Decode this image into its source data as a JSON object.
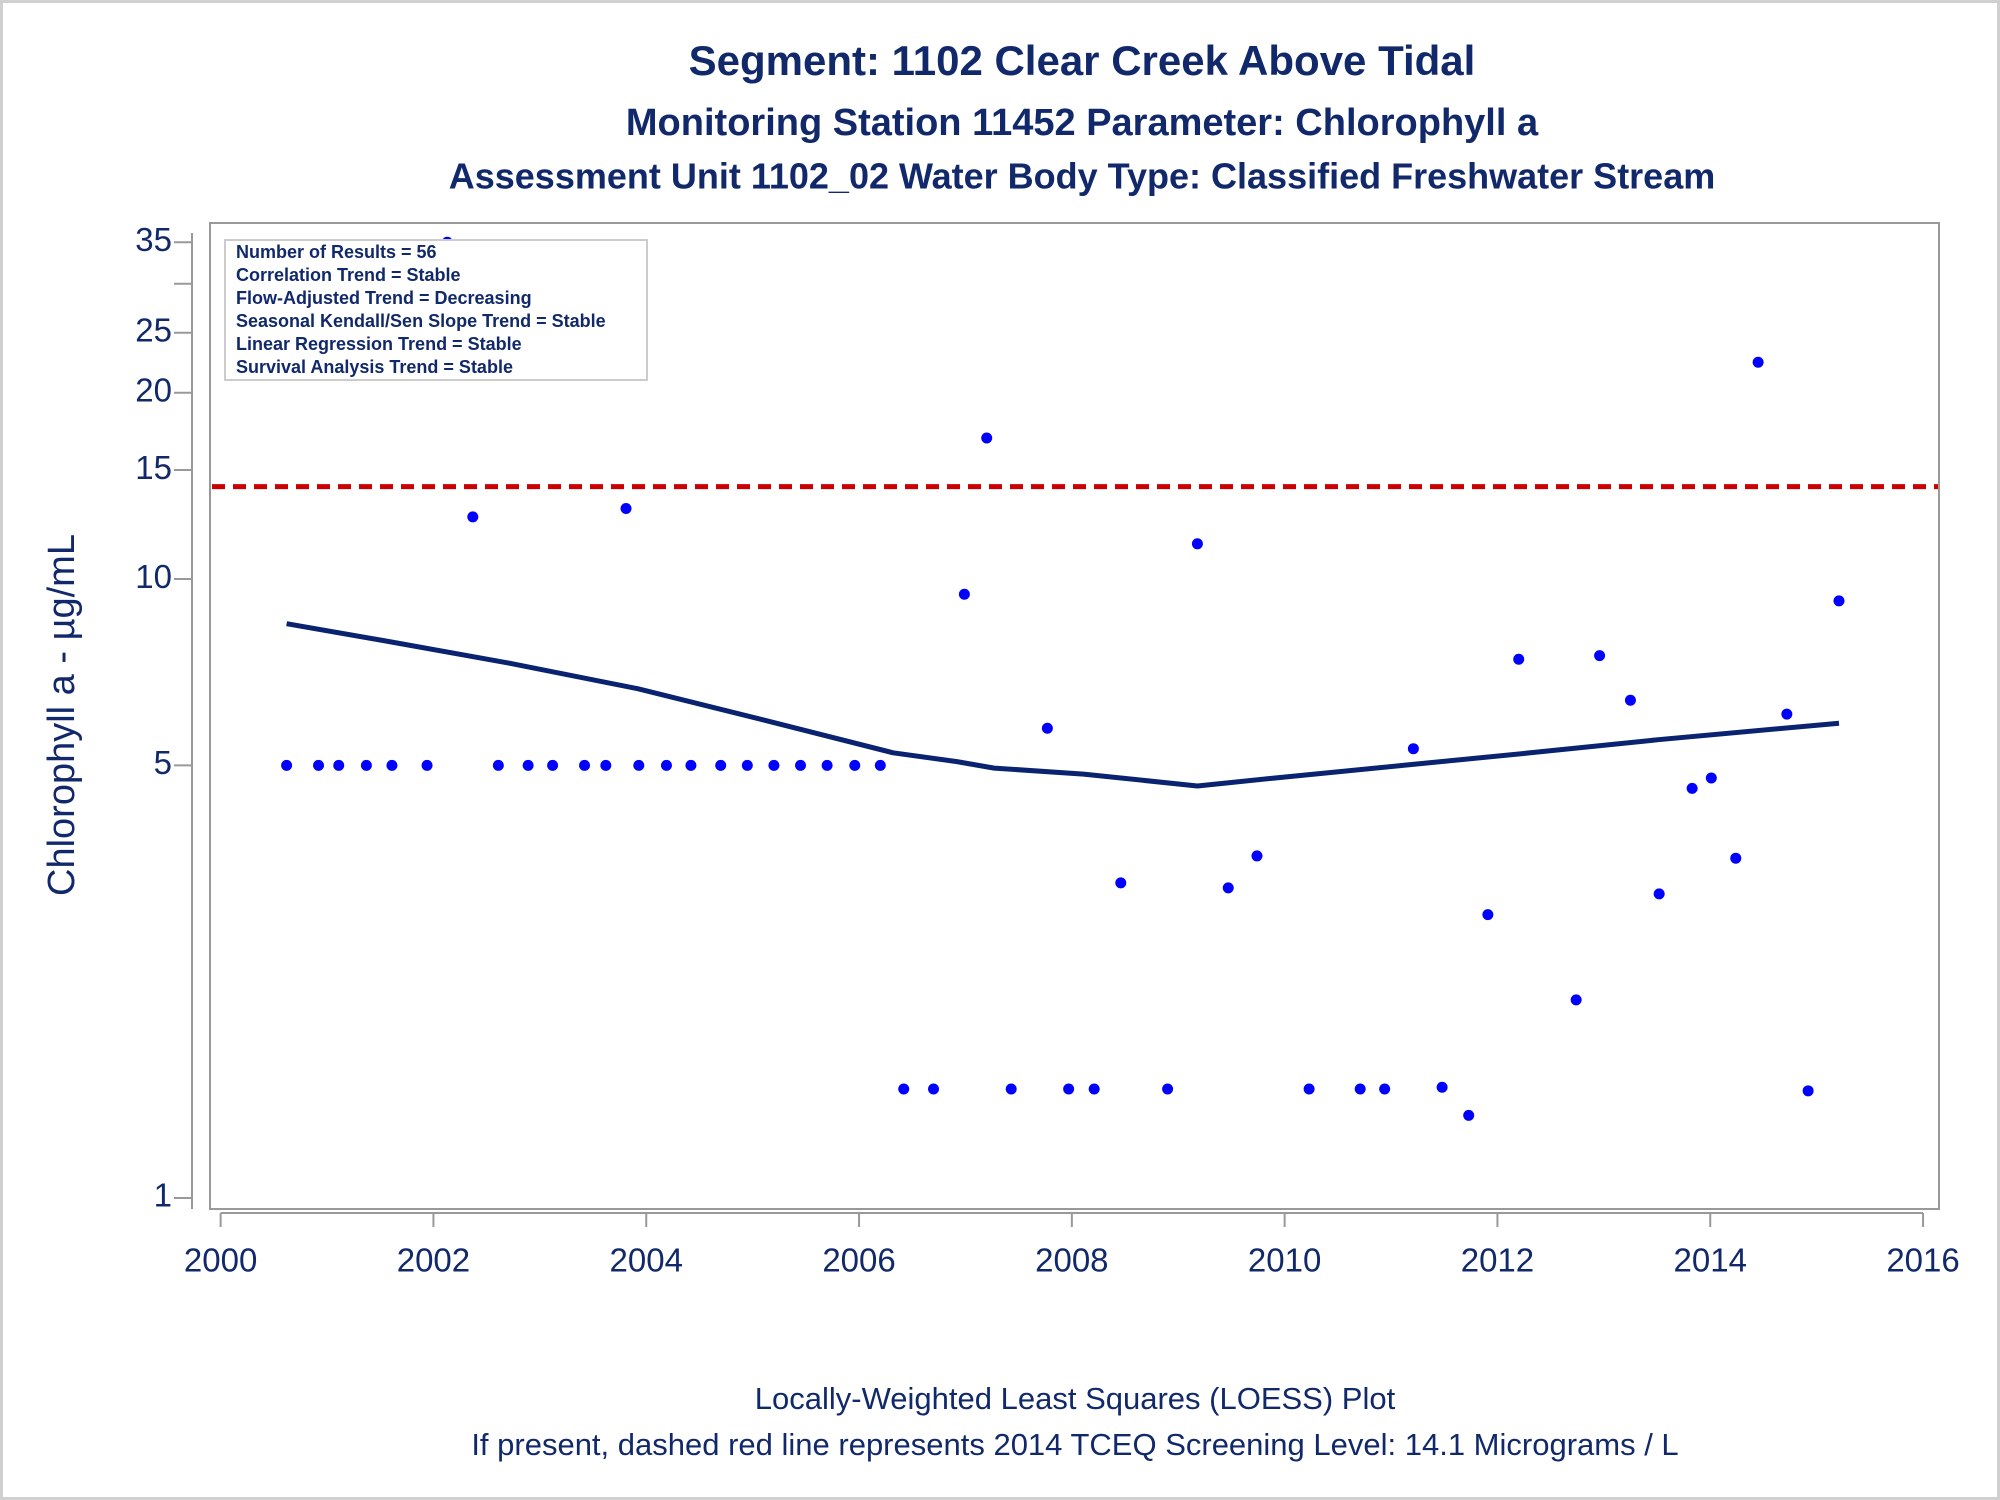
{
  "chart_data": {
    "type": "scatter",
    "title": "Segment: 1102  Clear Creek Above Tidal",
    "subtitle": "Monitoring Station 11452 Parameter: Chlorophyll a",
    "subtitle2": "Assessment Unit 1102_02   Water Body Type: Classified Freshwater Stream",
    "y_label": "Chlorophyll a -  µg/mL",
    "footnotes": [
      "Locally-Weighted Least Squares (LOESS) Plot",
      "If present, dashed red line represents 2014 TCEQ Screening Level: 14.1 Micrograms / L"
    ],
    "annotations": [
      "Number of Results = 56",
      "Correlation Trend = Stable",
      "Flow-Adjusted Trend = Decreasing",
      "Seasonal Kendall/Sen Slope Trend = Stable",
      "Linear Regression Trend = Stable",
      "Survival Analysis Trend = Stable"
    ],
    "xlim": [
      1999.9,
      2016.15
    ],
    "xticks": [
      2000,
      2002,
      2004,
      2006,
      2008,
      2010,
      2012,
      2014,
      2016
    ],
    "ylim": [
      0.96,
      37.6
    ],
    "ylog": true,
    "yticks": [
      1,
      5,
      10,
      15,
      20,
      25,
      35
    ],
    "yminorticks": [
      30
    ],
    "reference_line": {
      "value": 14.1,
      "color": "#cc0000",
      "dashed": true
    },
    "series": [
      {
        "type": "scatter",
        "color": "#0000ff",
        "x": [
          2000.62,
          2000.92,
          2001.11,
          2001.37,
          2001.61,
          2001.94,
          2002.13,
          2002.37,
          2002.61,
          2002.89,
          2003.12,
          2003.42,
          2003.62,
          2003.81,
          2003.93,
          2004.19,
          2004.42,
          2004.7,
          2004.95,
          2005.2,
          2005.45,
          2005.7,
          2005.96,
          2006.2,
          2006.42,
          2006.7,
          2006.99,
          2007.2,
          2007.43,
          2007.77,
          2007.97,
          2008.21,
          2008.46,
          2008.9,
          2009.18,
          2009.47,
          2009.74,
          2010.23,
          2010.71,
          2010.94,
          2011.21,
          2011.48,
          2011.73,
          2011.91,
          2012.2,
          2012.74,
          2012.96,
          2013.25,
          2013.52,
          2013.83,
          2014.01,
          2014.24,
          2014.45,
          2014.72,
          2014.92,
          2015.21
        ],
        "values": [
          5,
          5,
          5,
          5,
          5,
          5,
          35,
          12.6,
          5,
          5,
          5,
          5,
          5,
          13,
          5,
          5,
          5,
          5,
          5,
          5,
          5,
          5,
          5,
          5,
          1.5,
          1.5,
          9.45,
          16.9,
          1.5,
          5.74,
          1.5,
          1.5,
          3.23,
          1.5,
          11.4,
          3.17,
          3.57,
          1.5,
          1.5,
          1.5,
          5.32,
          1.51,
          1.36,
          2.87,
          7.42,
          2.09,
          7.52,
          6.37,
          3.1,
          4.59,
          4.77,
          3.54,
          22.4,
          6.05,
          1.49,
          9.22
        ]
      },
      {
        "type": "line",
        "color": "#0a2370",
        "x": [
          2000.62,
          2001.52,
          2002.72,
          2003.92,
          2005.12,
          2006.32,
          2006.92,
          2007.27,
          2008.11,
          2009.18,
          2009.91,
          2011.11,
          2012.31,
          2013.51,
          2015.21
        ],
        "values": [
          8.47,
          7.96,
          7.31,
          6.65,
          5.91,
          5.24,
          5.07,
          4.95,
          4.84,
          4.63,
          4.77,
          5.0,
          5.24,
          5.5,
          5.85
        ]
      }
    ]
  }
}
